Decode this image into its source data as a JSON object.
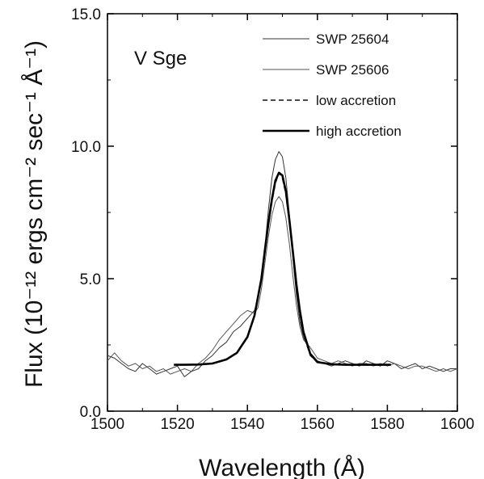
{
  "chart_data": {
    "type": "line",
    "title": "",
    "annotation": "V Sge",
    "xlabel": "Wavelength (Å)",
    "ylabel": "Flux (10⁻¹² ergs cm⁻² sec⁻¹ Å⁻¹)",
    "xlim": [
      1500,
      1600
    ],
    "ylim": [
      0,
      15
    ],
    "x_ticks": [
      1500,
      1520,
      1540,
      1560,
      1580,
      1600
    ],
    "x_tick_labels": [
      "1500",
      "1520",
      "1540",
      "1560",
      "1580",
      "1600"
    ],
    "y_ticks": [
      0,
      5,
      10,
      15
    ],
    "y_tick_labels": [
      "0.0",
      "5.0",
      "10.0",
      "15.0"
    ],
    "grid": false,
    "legend_position": "top-right",
    "series": [
      {
        "name": "SWP 25604",
        "style": "thin-solid",
        "color": "#333333",
        "x": [
          1500,
          1502,
          1504,
          1506,
          1508,
          1510,
          1512,
          1514,
          1516,
          1518,
          1520,
          1522,
          1524,
          1526,
          1528,
          1530,
          1532,
          1534,
          1536,
          1538,
          1540,
          1542,
          1543,
          1544,
          1545,
          1546,
          1547,
          1548,
          1549,
          1550,
          1551,
          1552,
          1553,
          1554,
          1555,
          1556,
          1558,
          1560,
          1562,
          1564,
          1566,
          1568,
          1570,
          1572,
          1574,
          1576,
          1578,
          1580,
          1582,
          1584,
          1586,
          1588,
          1590,
          1592,
          1594,
          1596,
          1598,
          1600
        ],
        "y": [
          2.1,
          2.0,
          1.8,
          1.6,
          1.5,
          1.8,
          1.6,
          1.4,
          1.5,
          1.6,
          1.7,
          1.3,
          1.5,
          1.6,
          1.9,
          2.1,
          2.4,
          2.6,
          3.0,
          3.2,
          3.5,
          3.8,
          4.2,
          5.0,
          6.2,
          7.6,
          8.8,
          9.5,
          9.8,
          9.6,
          8.8,
          7.4,
          5.8,
          4.4,
          3.4,
          2.8,
          2.2,
          1.9,
          1.8,
          1.7,
          1.8,
          1.9,
          1.8,
          1.7,
          1.9,
          1.8,
          1.7,
          1.9,
          1.8,
          1.6,
          1.7,
          1.8,
          1.6,
          1.7,
          1.6,
          1.5,
          1.6,
          1.6
        ]
      },
      {
        "name": "SWP 25606",
        "style": "thin-solid",
        "color": "#555555",
        "x": [
          1500,
          1502,
          1504,
          1506,
          1508,
          1510,
          1512,
          1514,
          1516,
          1518,
          1520,
          1522,
          1524,
          1526,
          1528,
          1530,
          1532,
          1534,
          1536,
          1538,
          1540,
          1542,
          1543,
          1544,
          1545,
          1546,
          1547,
          1548,
          1549,
          1550,
          1551,
          1552,
          1553,
          1554,
          1555,
          1556,
          1558,
          1560,
          1562,
          1564,
          1566,
          1568,
          1570,
          1572,
          1574,
          1576,
          1578,
          1580,
          1582,
          1584,
          1586,
          1588,
          1590,
          1592,
          1594,
          1596,
          1598,
          1600
        ],
        "y": [
          1.9,
          2.2,
          1.9,
          1.7,
          1.8,
          1.6,
          1.7,
          1.5,
          1.6,
          1.4,
          1.5,
          1.6,
          1.5,
          1.8,
          2.0,
          2.3,
          2.7,
          3.0,
          3.3,
          3.6,
          3.8,
          3.7,
          3.9,
          4.6,
          5.6,
          6.6,
          7.4,
          7.9,
          8.1,
          7.9,
          7.3,
          6.3,
          5.1,
          4.0,
          3.2,
          2.7,
          2.4,
          2.0,
          1.9,
          1.8,
          1.9,
          1.8,
          1.7,
          1.8,
          1.8,
          1.7,
          1.8,
          1.7,
          1.8,
          1.7,
          1.6,
          1.7,
          1.7,
          1.6,
          1.5,
          1.6,
          1.5,
          1.6
        ]
      },
      {
        "name": "low accretion",
        "style": "dashed",
        "color": "#111111",
        "x": [
          1519,
          1522,
          1526,
          1530,
          1534,
          1537,
          1540,
          1542,
          1544,
          1545,
          1546,
          1547,
          1548,
          1549,
          1550,
          1551,
          1552,
          1553,
          1554,
          1555,
          1556,
          1558,
          1560,
          1564,
          1568,
          1572,
          1576,
          1581
        ],
        "y": [
          1.75,
          1.75,
          1.76,
          1.8,
          1.95,
          2.2,
          2.8,
          3.6,
          5.0,
          6.0,
          7.0,
          7.9,
          8.6,
          9.0,
          8.8,
          8.2,
          7.1,
          5.9,
          4.7,
          3.7,
          2.9,
          2.1,
          1.85,
          1.77,
          1.75,
          1.75,
          1.75,
          1.75
        ]
      },
      {
        "name": "high accretion",
        "style": "thick-solid",
        "color": "#000000",
        "x": [
          1519,
          1522,
          1526,
          1530,
          1534,
          1537,
          1540,
          1542,
          1544,
          1545,
          1546,
          1547,
          1548,
          1549,
          1550,
          1551,
          1552,
          1553,
          1554,
          1555,
          1556,
          1558,
          1560,
          1564,
          1568,
          1572,
          1576,
          1581
        ],
        "y": [
          1.75,
          1.75,
          1.76,
          1.8,
          1.95,
          2.2,
          2.8,
          3.6,
          5.0,
          6.1,
          7.1,
          8.0,
          8.7,
          9.0,
          8.9,
          8.3,
          7.2,
          6.0,
          4.8,
          3.8,
          3.0,
          2.15,
          1.85,
          1.77,
          1.75,
          1.75,
          1.75,
          1.75
        ]
      }
    ]
  }
}
